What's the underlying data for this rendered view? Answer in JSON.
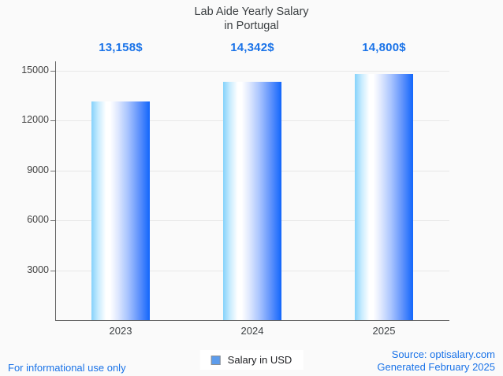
{
  "title": {
    "line1": "Lab Aide Yearly Salary",
    "line2": "in Portugal"
  },
  "chart_data": {
    "type": "bar",
    "title": "Lab Aide Yearly Salary in Portugal",
    "categories": [
      "2023",
      "2024",
      "2025"
    ],
    "values": [
      13158,
      14342,
      14800
    ],
    "value_labels": [
      "13,158$",
      "14,342$",
      "14,800$"
    ],
    "xlabel": "",
    "ylabel": "",
    "ylim": [
      0,
      15000
    ],
    "yticks": [
      3000,
      6000,
      9000,
      12000,
      15000
    ],
    "grid": true,
    "legend_position": "bottom-center",
    "series_name": "Salary in USD"
  },
  "legend": {
    "label": "Salary in USD",
    "marker_color": "#5d9cec",
    "marker_border": "#8e8e8e"
  },
  "footer": {
    "left_note": "For informational use only",
    "source": "Source: optisalary.com",
    "generated": "Generated February 2025"
  },
  "colors": {
    "background": "#fafafa",
    "title_text": "#3c4043",
    "value_label_blue": "#1a73e8",
    "footer_blue": "#1a73e8",
    "axis_gray": "#616161",
    "grid_gray": "#e8e8e8",
    "bar_gradient_left": "#85d2fb",
    "bar_gradient_mid": "#ffffff",
    "bar_gradient_right": "#1266fb"
  }
}
